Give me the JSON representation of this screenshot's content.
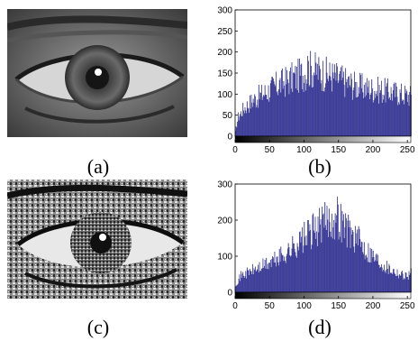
{
  "panels": [
    {
      "label": "(a)",
      "kind": "photo",
      "variant": "original"
    },
    {
      "label": "(b)",
      "kind": "histogram"
    },
    {
      "label": "(c)",
      "kind": "photo",
      "variant": "equalized"
    },
    {
      "label": "(d)",
      "kind": "histogram"
    }
  ],
  "colors": {
    "bar": "#3f3fb3",
    "bar_edge": "#1a1a66",
    "axis": "#000000"
  },
  "chart_data": [
    {
      "type": "bar",
      "panel": "(b)",
      "xlim": [
        0,
        255
      ],
      "ylim": [
        0,
        300
      ],
      "xticks": [
        0,
        50,
        100,
        150,
        200,
        250
      ],
      "yticks": [
        0,
        50,
        100,
        150,
        200,
        250,
        300
      ],
      "xlabel": "",
      "ylabel": "",
      "colorbar": "grayscale",
      "profile": [
        [
          0,
          10
        ],
        [
          4,
          45
        ],
        [
          12,
          65
        ],
        [
          25,
          85
        ],
        [
          40,
          100
        ],
        [
          60,
          120
        ],
        [
          80,
          135
        ],
        [
          95,
          145
        ],
        [
          110,
          160
        ],
        [
          125,
          150
        ],
        [
          145,
          140
        ],
        [
          165,
          125
        ],
        [
          185,
          115
        ],
        [
          205,
          110
        ],
        [
          225,
          105
        ],
        [
          240,
          100
        ],
        [
          255,
          95
        ]
      ],
      "peak": {
        "x": 105,
        "y": 190
      }
    },
    {
      "type": "bar",
      "panel": "(d)",
      "xlim": [
        0,
        255
      ],
      "ylim": [
        0,
        300
      ],
      "xticks": [
        0,
        50,
        100,
        150,
        200,
        250
      ],
      "yticks": [
        0,
        100,
        200,
        300
      ],
      "xlabel": "",
      "ylabel": "",
      "colorbar": "grayscale",
      "profile": [
        [
          0,
          20
        ],
        [
          8,
          45
        ],
        [
          25,
          60
        ],
        [
          50,
          80
        ],
        [
          75,
          110
        ],
        [
          100,
          150
        ],
        [
          120,
          180
        ],
        [
          135,
          200
        ],
        [
          148,
          210
        ],
        [
          160,
          180
        ],
        [
          180,
          140
        ],
        [
          200,
          100
        ],
        [
          220,
          70
        ],
        [
          240,
          50
        ],
        [
          250,
          45
        ],
        [
          255,
          60
        ]
      ],
      "peak": {
        "x": 145,
        "y": 218
      }
    }
  ]
}
